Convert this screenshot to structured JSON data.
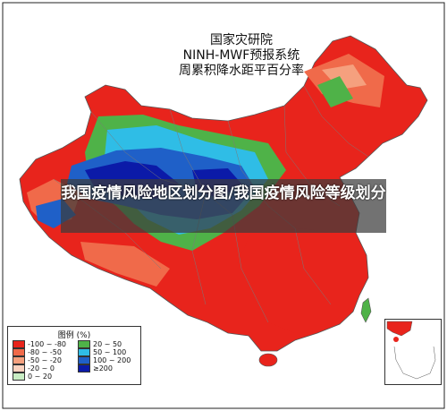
{
  "map": {
    "title_lines": [
      "国家灾研院",
      "NINH-MWF预报系统",
      "周累积降水距平百分率"
    ],
    "overlay_caption": "我国疫情风险地区划分图/我国疫情风险等级划分",
    "legend": {
      "title": "图例 (%)",
      "items": [
        {
          "label": "-100 ~ -80",
          "color": "#e8241c"
        },
        {
          "label": "-80 ~ -50",
          "color": "#f06a4a"
        },
        {
          "label": "-50 ~ -20",
          "color": "#f5a07e"
        },
        {
          "label": "-20 ~ 0",
          "color": "#fbd2bf"
        },
        {
          "label": "0 ~ 20",
          "color": "#c9edc4"
        },
        {
          "label": "20 ~ 50",
          "color": "#4fb248"
        },
        {
          "label": "50 ~ 100",
          "color": "#2fbde6"
        },
        {
          "label": "100 ~ 200",
          "color": "#1f60c8"
        },
        {
          "label": "≥200",
          "color": "#0b1aa8"
        }
      ]
    },
    "colors": {
      "base_dry": "#e8241c",
      "moderate_dry": "#f06a4a",
      "light_dry": "#f5a07e",
      "wet_mid": "#4fb248",
      "wet_high": "#2fbde6",
      "wet_very_high": "#1f60c8",
      "wet_extreme": "#0b1aa8",
      "background": "#ffffff"
    }
  }
}
